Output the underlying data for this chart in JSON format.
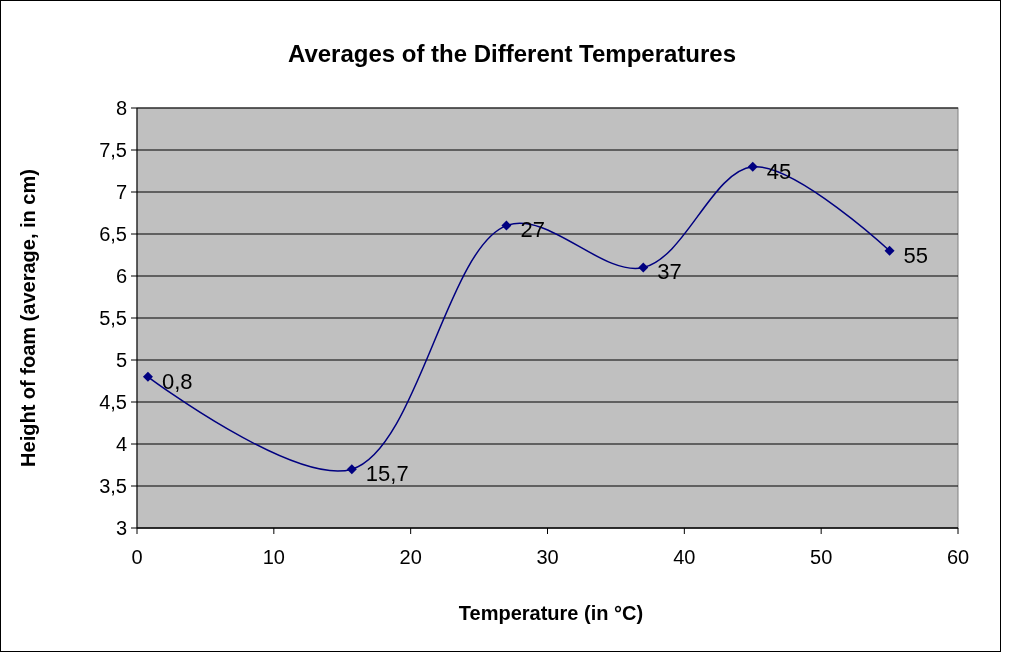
{
  "chart_data": {
    "type": "line",
    "title": "Averages of the Different Temperatures",
    "xlabel": "Temperature (in °C)",
    "ylabel": "Height of foam (average, in cm)",
    "x": [
      0.8,
      15.7,
      27,
      37,
      45,
      55
    ],
    "series": [
      {
        "color": "#000080",
        "values": [
          4.8,
          3.7,
          6.6,
          6.1,
          7.3,
          6.3
        ]
      }
    ],
    "xlim": [
      0,
      60
    ],
    "xticks": [
      0,
      10,
      20,
      30,
      40,
      50,
      60
    ],
    "ylim": [
      3,
      8
    ],
    "yticks": [
      3,
      {
        "value": 3.5,
        "label": "3,5"
      },
      4,
      {
        "value": 4.5,
        "label": "4,5"
      },
      5,
      {
        "value": 5.5,
        "label": "5,5"
      },
      6,
      {
        "value": 6.5,
        "label": "6,5"
      },
      7,
      {
        "value": 7.5,
        "label": "7,5"
      },
      8
    ],
    "grid": "y",
    "marker": "diamond",
    "line_style": "solid",
    "annotations": [
      {
        "text": "0,8",
        "x": 0.8,
        "y": 4.8
      },
      {
        "text": "15,7",
        "x": 15.7,
        "y": 3.7
      },
      {
        "text": "27",
        "x": 27,
        "y": 6.6
      },
      {
        "text": "37",
        "x": 37,
        "y": 6.1
      },
      {
        "text": "45",
        "x": 45,
        "y": 7.3
      },
      {
        "text": "55",
        "x": 55,
        "y": 6.3
      }
    ]
  }
}
